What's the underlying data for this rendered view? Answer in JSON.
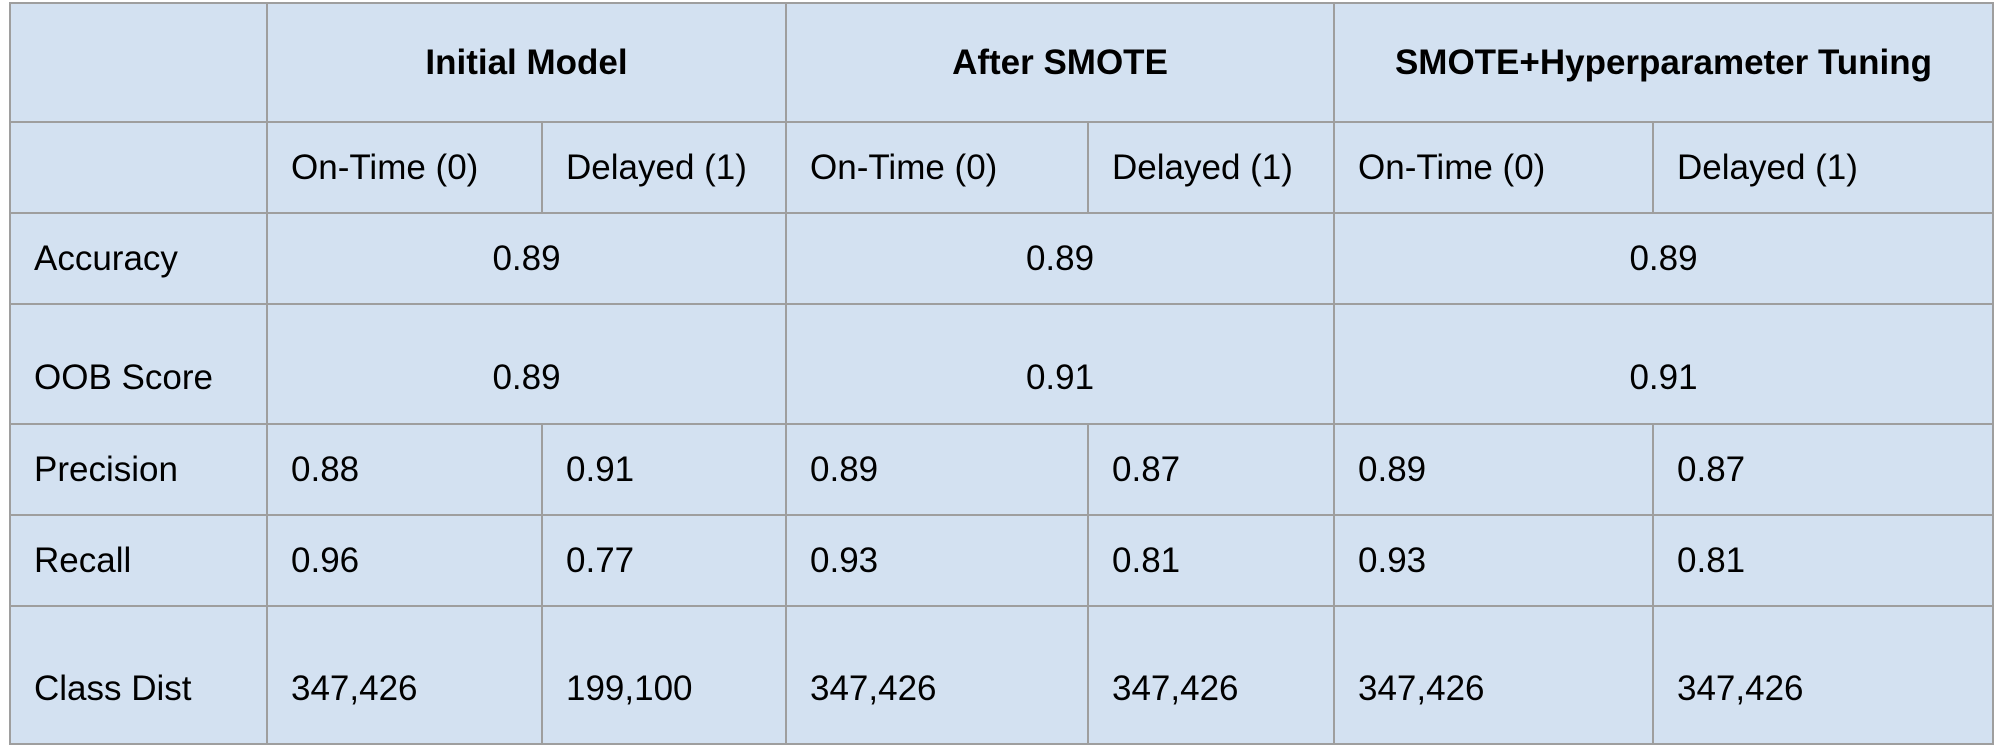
{
  "table": {
    "groups": [
      "Initial Model",
      "After SMOTE",
      "SMOTE+Hyperparameter Tuning"
    ],
    "subheaders": [
      "On-Time (0)",
      "Delayed (1)",
      "On-Time (0)",
      "Delayed (1)",
      "On-Time (0)",
      "Delayed (1)"
    ],
    "accuracy": {
      "label": "Accuracy",
      "values": [
        "0.89",
        "0.89",
        "0.89"
      ]
    },
    "oob_score": {
      "label": "OOB Score",
      "values": [
        "0.89",
        "0.91",
        "0.91"
      ]
    },
    "precision": {
      "label": "Precision",
      "values": [
        "0.88",
        "0.91",
        "0.89",
        "0.87",
        "0.89",
        "0.87"
      ]
    },
    "recall": {
      "label": "Recall",
      "values": [
        "0.96",
        "0.77",
        "0.93",
        "0.81",
        "0.93",
        "0.81"
      ]
    },
    "class_dist": {
      "label": "Class Dist",
      "values": [
        "347,426",
        "199,100",
        "347,426",
        "347,426",
        "347,426",
        "347,426"
      ]
    }
  },
  "colors": {
    "cell_background": "#d3e1f1",
    "grid_line": "#9e9e9e",
    "text": "#000000"
  }
}
